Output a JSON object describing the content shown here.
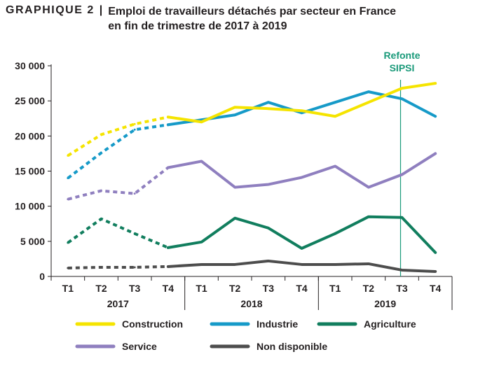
{
  "figure": {
    "tag": "GRAPHIQUE 2",
    "separator": "|",
    "title": "Emploi de travailleurs détachés par secteur en France en fin de trimestre de 2017 à 2019"
  },
  "chart_data": {
    "type": "line",
    "categories": [
      "T1",
      "T2",
      "T3",
      "T4",
      "T1",
      "T2",
      "T3",
      "T4",
      "T1",
      "T2",
      "T3",
      "T4"
    ],
    "year_groups": [
      {
        "label": "2017",
        "start": 0,
        "end": 3
      },
      {
        "label": "2018",
        "start": 4,
        "end": 7
      },
      {
        "label": "2019",
        "start": 8,
        "end": 11
      }
    ],
    "ylim": [
      0,
      30000
    ],
    "yticks": [
      0,
      5000,
      10000,
      15000,
      20000,
      25000,
      30000
    ],
    "ytick_labels": [
      "0",
      "5 000",
      "10 000",
      "15 000",
      "20 000",
      "25 000",
      "30 000"
    ],
    "dashed_until_index": 3,
    "annotation": {
      "text_lines": [
        "Refonte",
        "SIPSI"
      ],
      "at_index": 10,
      "color": "#1a9a7a"
    },
    "series": [
      {
        "name": "Construction",
        "color": "#f5e400",
        "values": [
          17200,
          20200,
          21700,
          22700,
          22000,
          24100,
          23900,
          23600,
          22800,
          24800,
          26800,
          27500
        ]
      },
      {
        "name": "Industrie",
        "color": "#169ac8",
        "values": [
          14000,
          17600,
          20900,
          21600,
          22300,
          23000,
          24800,
          23300,
          24800,
          26300,
          25300,
          22800
        ]
      },
      {
        "name": "Agriculture",
        "color": "#117e5e",
        "values": [
          4800,
          8200,
          6100,
          4100,
          4900,
          8300,
          6900,
          4000,
          6100,
          8500,
          8400,
          3400
        ]
      },
      {
        "name": "Service",
        "color": "#8f7fbf",
        "values": [
          11000,
          12200,
          11800,
          15500,
          16400,
          12700,
          13100,
          14100,
          15700,
          12700,
          14500,
          17500
        ]
      },
      {
        "name": "Non disponible",
        "color": "#4d4d4d",
        "values": [
          1200,
          1300,
          1300,
          1400,
          1700,
          1700,
          2200,
          1700,
          1700,
          1800,
          900,
          700
        ]
      }
    ],
    "legend_position": "bottom",
    "grid": false
  }
}
